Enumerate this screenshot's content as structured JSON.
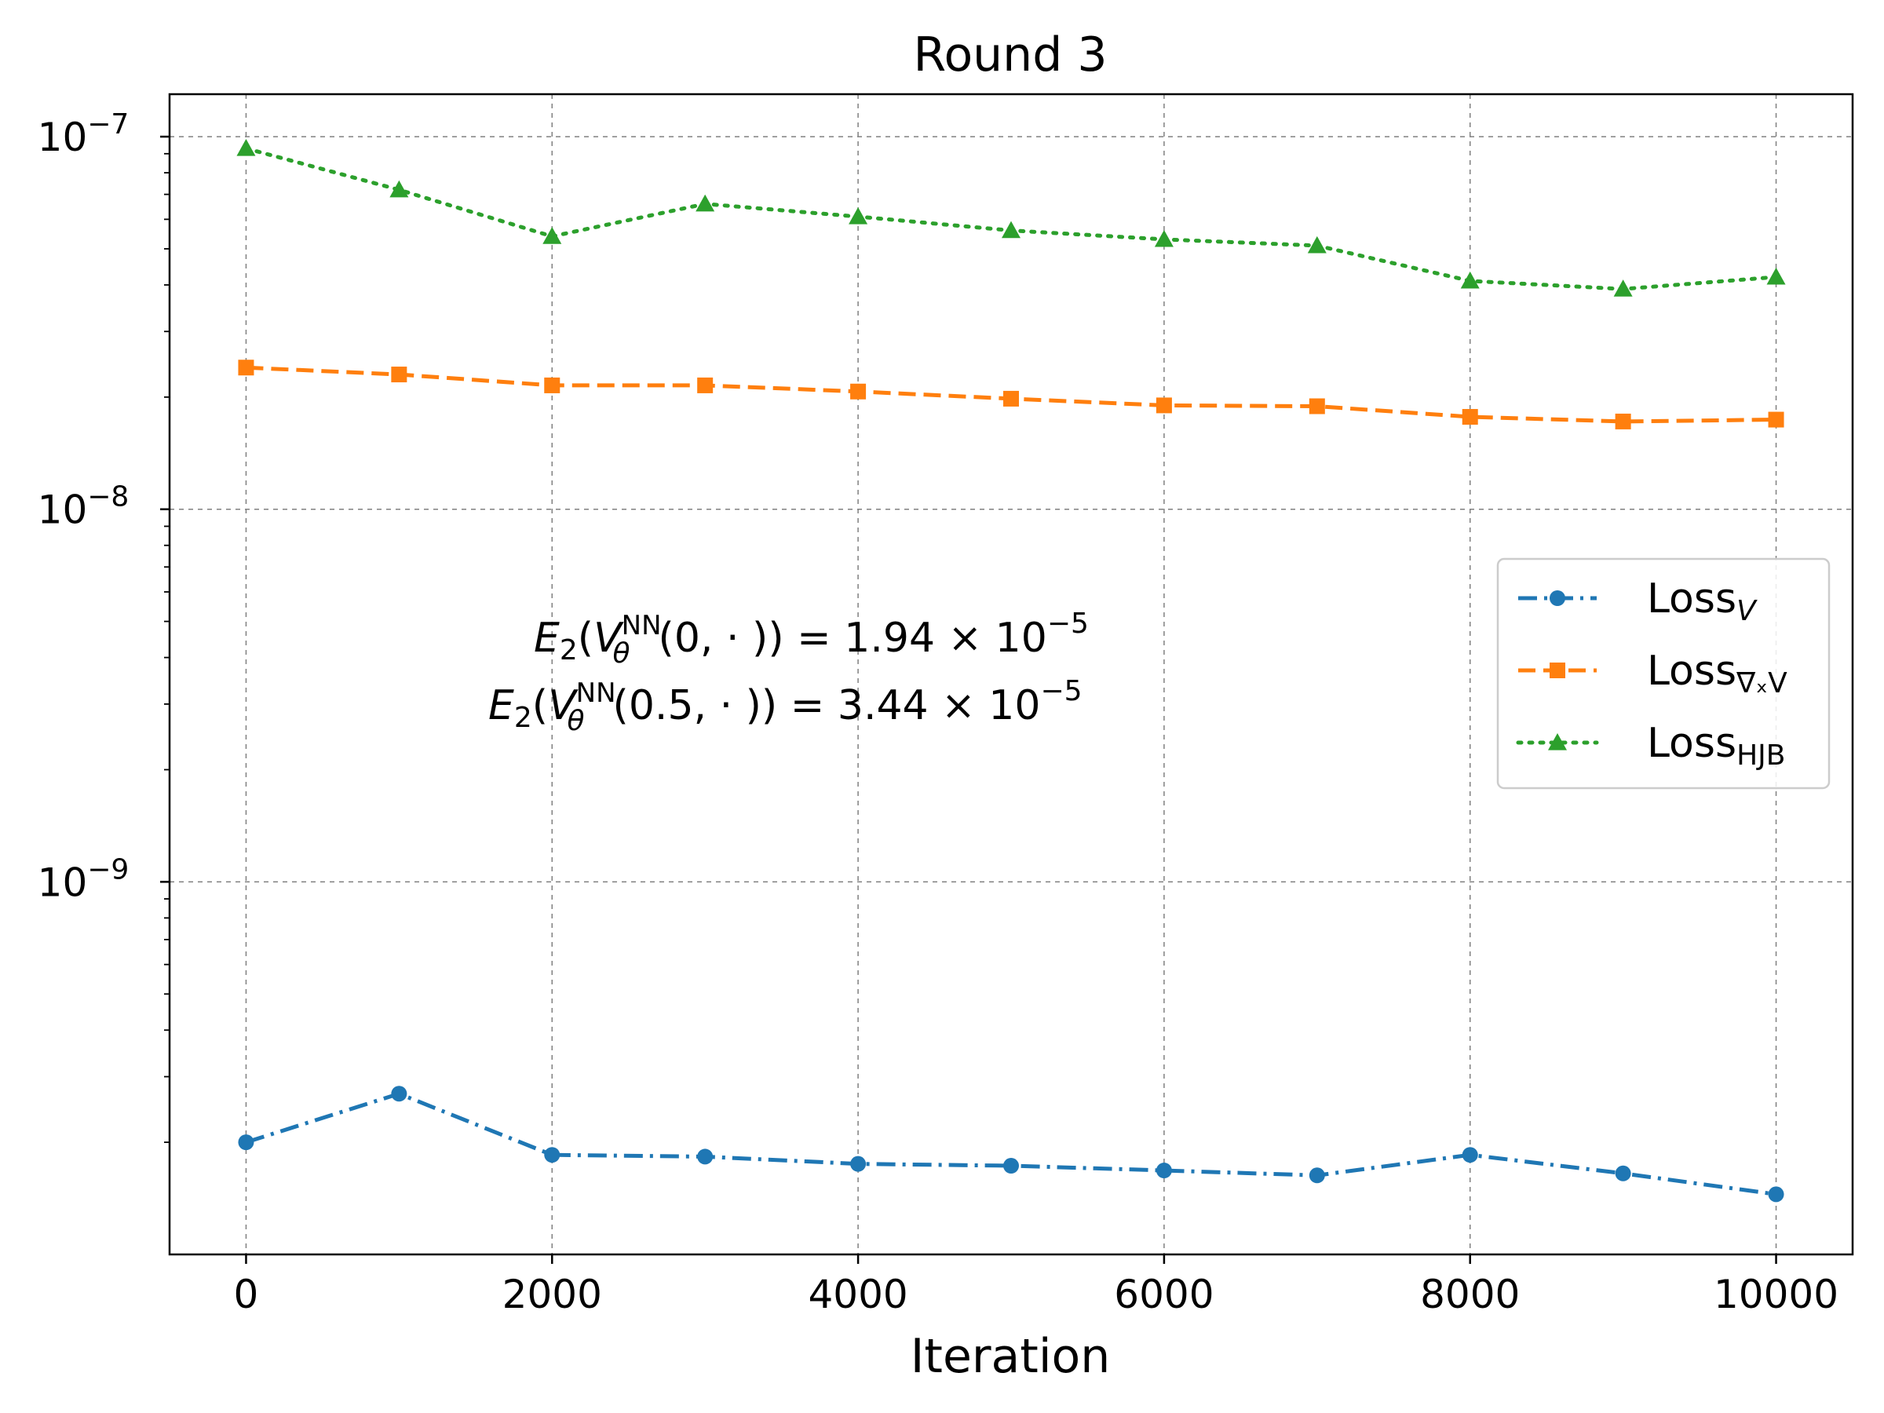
{
  "chart_data": {
    "type": "line",
    "title": "Round 3",
    "xlabel": "Iteration",
    "ylabel": "",
    "xlim": [
      -500,
      10500
    ],
    "ylim": [
      1e-10,
      1.3e-07
    ],
    "yscale": "log",
    "grid": true,
    "legend_position": "center-right",
    "x": [
      0,
      1000,
      2000,
      3000,
      4000,
      5000,
      6000,
      7000,
      8000,
      9000,
      10000
    ],
    "x_ticks": [
      0,
      2000,
      4000,
      6000,
      8000,
      10000
    ],
    "x_tick_labels": [
      "0",
      "2000",
      "4000",
      "6000",
      "8000",
      "10000"
    ],
    "y_ticks": [
      1e-09,
      1e-08,
      1e-07
    ],
    "y_tick_labels": [
      {
        "base": "10",
        "exp": "−9"
      },
      {
        "base": "10",
        "exp": "−8"
      },
      {
        "base": "10",
        "exp": "−7"
      }
    ],
    "series": [
      {
        "key": "lossV",
        "name": {
          "main": "Loss",
          "sub": "V",
          "sub_italic": true
        },
        "color": "#1f77b4",
        "marker": "circle",
        "linestyle": "dashdot",
        "values": [
          2e-10,
          2.7e-10,
          1.85e-10,
          1.83e-10,
          1.75e-10,
          1.73e-10,
          1.68e-10,
          1.63e-10,
          1.85e-10,
          1.65e-10,
          1.45e-10
        ]
      },
      {
        "key": "lossGradV",
        "name": {
          "main": "Loss",
          "sub": "∇ₓV",
          "sub_italic": false
        },
        "color": "#ff7f0e",
        "marker": "square",
        "linestyle": "dashed",
        "values": [
          2.4e-08,
          2.3e-08,
          2.15e-08,
          2.15e-08,
          2.07e-08,
          1.98e-08,
          1.9e-08,
          1.89e-08,
          1.77e-08,
          1.72e-08,
          1.74e-08
        ]
      },
      {
        "key": "lossHJB",
        "name": {
          "main": "Loss",
          "sub": "HJB",
          "sub_italic": false
        },
        "color": "#2ca02c",
        "marker": "triangle",
        "linestyle": "dotted",
        "values": [
          9.3e-08,
          7.2e-08,
          5.4e-08,
          6.6e-08,
          6.1e-08,
          5.6e-08,
          5.3e-08,
          5.1e-08,
          4.1e-08,
          3.9e-08,
          4.2e-08
        ]
      }
    ],
    "annotations": [
      {
        "lhs_arg": "0,",
        "value": "1.94",
        "exp": "−5"
      },
      {
        "lhs_arg": "0.5,",
        "value": "3.44",
        "exp": "−5"
      }
    ]
  }
}
